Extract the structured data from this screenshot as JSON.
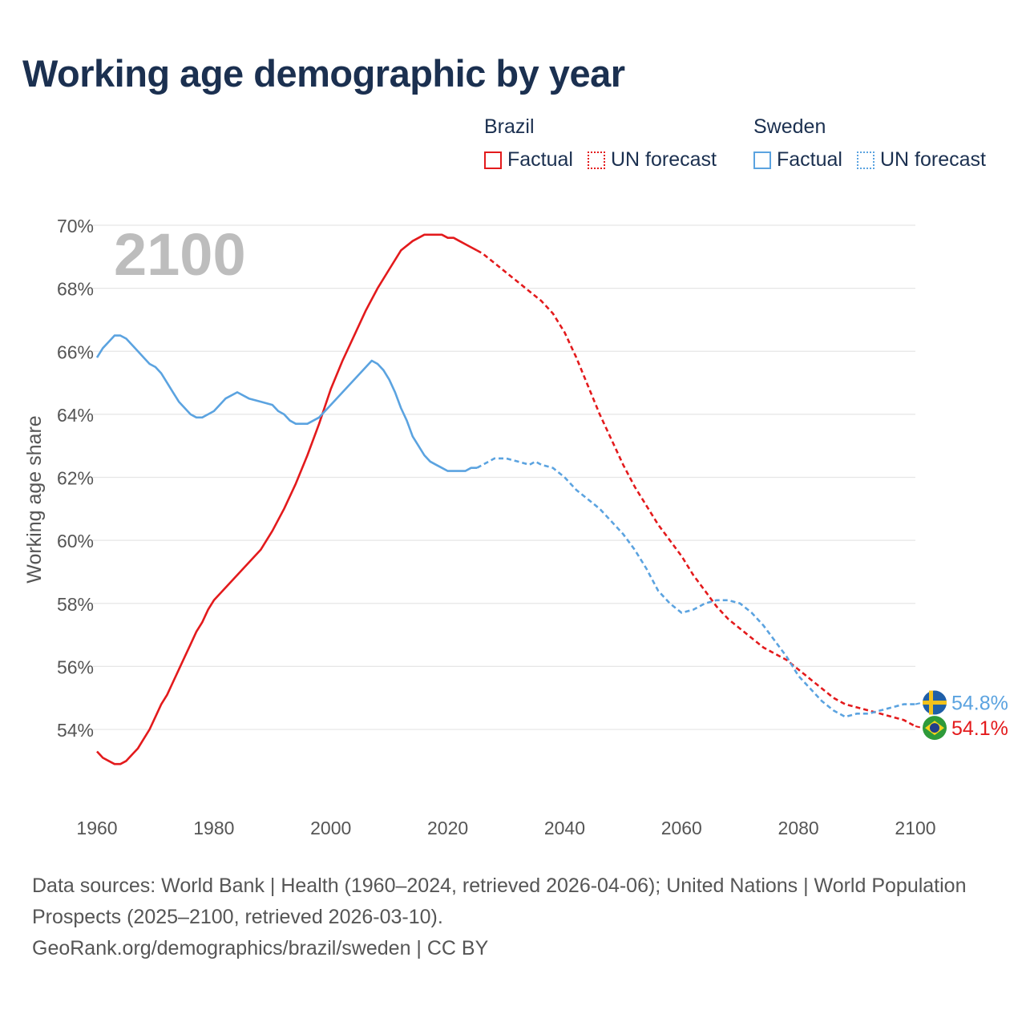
{
  "title": "Working age demographic by year",
  "legend": {
    "groups": [
      {
        "name": "Brazil",
        "factual_label": "Factual",
        "forecast_label": "UN forecast",
        "color": "#e31a1c"
      },
      {
        "name": "Sweden",
        "factual_label": "Factual",
        "forecast_label": "UN forecast",
        "color": "#5ba3e0"
      }
    ]
  },
  "year_watermark": "2100",
  "footer": {
    "sources": "Data sources: World Bank | Health (1960–2024, retrieved 2026-04-06); United Nations | World Population Prospects (2025–2100, retrieved 2026-03-10).",
    "credit": "GeoRank.org/demographics/brazil/sweden | CC BY"
  },
  "chart_data": {
    "type": "line",
    "title": "Working age demographic by year",
    "xlabel": "",
    "ylabel": "Working age share",
    "xlim": [
      1960,
      2103
    ],
    "ylim": [
      52.5,
      70
    ],
    "x_ticks": [
      1960,
      1980,
      2000,
      2020,
      2040,
      2060,
      2080,
      2100
    ],
    "y_ticks": [
      54,
      56,
      58,
      60,
      62,
      64,
      66,
      68,
      70
    ],
    "y_tick_suffix": "%",
    "forecast_start": 2025,
    "series": [
      {
        "name": "Brazil",
        "color": "#e31a1c",
        "end_label": "54.1%",
        "points": [
          [
            1960,
            53.3
          ],
          [
            1961,
            53.1
          ],
          [
            1962,
            53.0
          ],
          [
            1963,
            52.9
          ],
          [
            1964,
            52.9
          ],
          [
            1965,
            53.0
          ],
          [
            1966,
            53.2
          ],
          [
            1967,
            53.4
          ],
          [
            1968,
            53.7
          ],
          [
            1969,
            54.0
          ],
          [
            1970,
            54.4
          ],
          [
            1971,
            54.8
          ],
          [
            1972,
            55.1
          ],
          [
            1973,
            55.5
          ],
          [
            1974,
            55.9
          ],
          [
            1975,
            56.3
          ],
          [
            1976,
            56.7
          ],
          [
            1977,
            57.1
          ],
          [
            1978,
            57.4
          ],
          [
            1979,
            57.8
          ],
          [
            1980,
            58.1
          ],
          [
            1982,
            58.5
          ],
          [
            1984,
            58.9
          ],
          [
            1986,
            59.3
          ],
          [
            1988,
            59.7
          ],
          [
            1990,
            60.3
          ],
          [
            1992,
            61.0
          ],
          [
            1994,
            61.8
          ],
          [
            1996,
            62.7
          ],
          [
            1998,
            63.7
          ],
          [
            2000,
            64.8
          ],
          [
            2002,
            65.7
          ],
          [
            2004,
            66.5
          ],
          [
            2006,
            67.3
          ],
          [
            2008,
            68.0
          ],
          [
            2010,
            68.6
          ],
          [
            2012,
            69.2
          ],
          [
            2014,
            69.5
          ],
          [
            2016,
            69.7
          ],
          [
            2018,
            69.7
          ],
          [
            2019,
            69.7
          ],
          [
            2020,
            69.6
          ],
          [
            2021,
            69.6
          ],
          [
            2022,
            69.5
          ],
          [
            2023,
            69.4
          ],
          [
            2024,
            69.3
          ],
          [
            2025,
            69.2
          ],
          [
            2026,
            69.1
          ],
          [
            2028,
            68.8
          ],
          [
            2030,
            68.5
          ],
          [
            2032,
            68.2
          ],
          [
            2034,
            67.9
          ],
          [
            2036,
            67.6
          ],
          [
            2038,
            67.2
          ],
          [
            2040,
            66.6
          ],
          [
            2042,
            65.8
          ],
          [
            2044,
            64.9
          ],
          [
            2046,
            64.0
          ],
          [
            2048,
            63.2
          ],
          [
            2050,
            62.4
          ],
          [
            2052,
            61.7
          ],
          [
            2054,
            61.1
          ],
          [
            2056,
            60.5
          ],
          [
            2058,
            60.0
          ],
          [
            2060,
            59.5
          ],
          [
            2062,
            58.9
          ],
          [
            2064,
            58.4
          ],
          [
            2066,
            57.9
          ],
          [
            2068,
            57.5
          ],
          [
            2070,
            57.2
          ],
          [
            2072,
            56.9
          ],
          [
            2074,
            56.6
          ],
          [
            2076,
            56.4
          ],
          [
            2078,
            56.2
          ],
          [
            2080,
            55.9
          ],
          [
            2082,
            55.6
          ],
          [
            2084,
            55.3
          ],
          [
            2086,
            55.0
          ],
          [
            2088,
            54.8
          ],
          [
            2090,
            54.7
          ],
          [
            2092,
            54.6
          ],
          [
            2094,
            54.5
          ],
          [
            2096,
            54.4
          ],
          [
            2098,
            54.3
          ],
          [
            2100,
            54.1
          ]
        ]
      },
      {
        "name": "Sweden",
        "color": "#5ba3e0",
        "end_label": "54.8%",
        "points": [
          [
            1960,
            65.8
          ],
          [
            1961,
            66.1
          ],
          [
            1962,
            66.3
          ],
          [
            1963,
            66.5
          ],
          [
            1964,
            66.5
          ],
          [
            1965,
            66.4
          ],
          [
            1966,
            66.2
          ],
          [
            1967,
            66.0
          ],
          [
            1968,
            65.8
          ],
          [
            1969,
            65.6
          ],
          [
            1970,
            65.5
          ],
          [
            1971,
            65.3
          ],
          [
            1972,
            65.0
          ],
          [
            1973,
            64.7
          ],
          [
            1974,
            64.4
          ],
          [
            1975,
            64.2
          ],
          [
            1976,
            64.0
          ],
          [
            1977,
            63.9
          ],
          [
            1978,
            63.9
          ],
          [
            1979,
            64.0
          ],
          [
            1980,
            64.1
          ],
          [
            1982,
            64.5
          ],
          [
            1984,
            64.7
          ],
          [
            1986,
            64.5
          ],
          [
            1988,
            64.4
          ],
          [
            1990,
            64.3
          ],
          [
            1991,
            64.1
          ],
          [
            1992,
            64.0
          ],
          [
            1993,
            63.8
          ],
          [
            1994,
            63.7
          ],
          [
            1996,
            63.7
          ],
          [
            1998,
            63.9
          ],
          [
            2000,
            64.3
          ],
          [
            2002,
            64.7
          ],
          [
            2004,
            65.1
          ],
          [
            2006,
            65.5
          ],
          [
            2007,
            65.7
          ],
          [
            2008,
            65.6
          ],
          [
            2009,
            65.4
          ],
          [
            2010,
            65.1
          ],
          [
            2011,
            64.7
          ],
          [
            2012,
            64.2
          ],
          [
            2013,
            63.8
          ],
          [
            2014,
            63.3
          ],
          [
            2015,
            63.0
          ],
          [
            2016,
            62.7
          ],
          [
            2017,
            62.5
          ],
          [
            2018,
            62.4
          ],
          [
            2019,
            62.3
          ],
          [
            2020,
            62.2
          ],
          [
            2021,
            62.2
          ],
          [
            2022,
            62.2
          ],
          [
            2023,
            62.2
          ],
          [
            2024,
            62.3
          ],
          [
            2025,
            62.3
          ],
          [
            2026,
            62.4
          ],
          [
            2028,
            62.6
          ],
          [
            2030,
            62.6
          ],
          [
            2032,
            62.5
          ],
          [
            2034,
            62.4
          ],
          [
            2035,
            62.5
          ],
          [
            2036,
            62.4
          ],
          [
            2038,
            62.3
          ],
          [
            2040,
            62.0
          ],
          [
            2042,
            61.6
          ],
          [
            2044,
            61.3
          ],
          [
            2046,
            61.0
          ],
          [
            2048,
            60.6
          ],
          [
            2050,
            60.2
          ],
          [
            2052,
            59.7
          ],
          [
            2054,
            59.1
          ],
          [
            2056,
            58.4
          ],
          [
            2058,
            58.0
          ],
          [
            2060,
            57.7
          ],
          [
            2062,
            57.8
          ],
          [
            2064,
            58.0
          ],
          [
            2066,
            58.1
          ],
          [
            2068,
            58.1
          ],
          [
            2070,
            58.0
          ],
          [
            2072,
            57.7
          ],
          [
            2074,
            57.3
          ],
          [
            2076,
            56.8
          ],
          [
            2078,
            56.3
          ],
          [
            2080,
            55.7
          ],
          [
            2082,
            55.3
          ],
          [
            2084,
            54.9
          ],
          [
            2086,
            54.6
          ],
          [
            2088,
            54.4
          ],
          [
            2090,
            54.5
          ],
          [
            2092,
            54.5
          ],
          [
            2094,
            54.6
          ],
          [
            2096,
            54.7
          ],
          [
            2098,
            54.8
          ],
          [
            2100,
            54.8
          ]
        ]
      }
    ]
  }
}
